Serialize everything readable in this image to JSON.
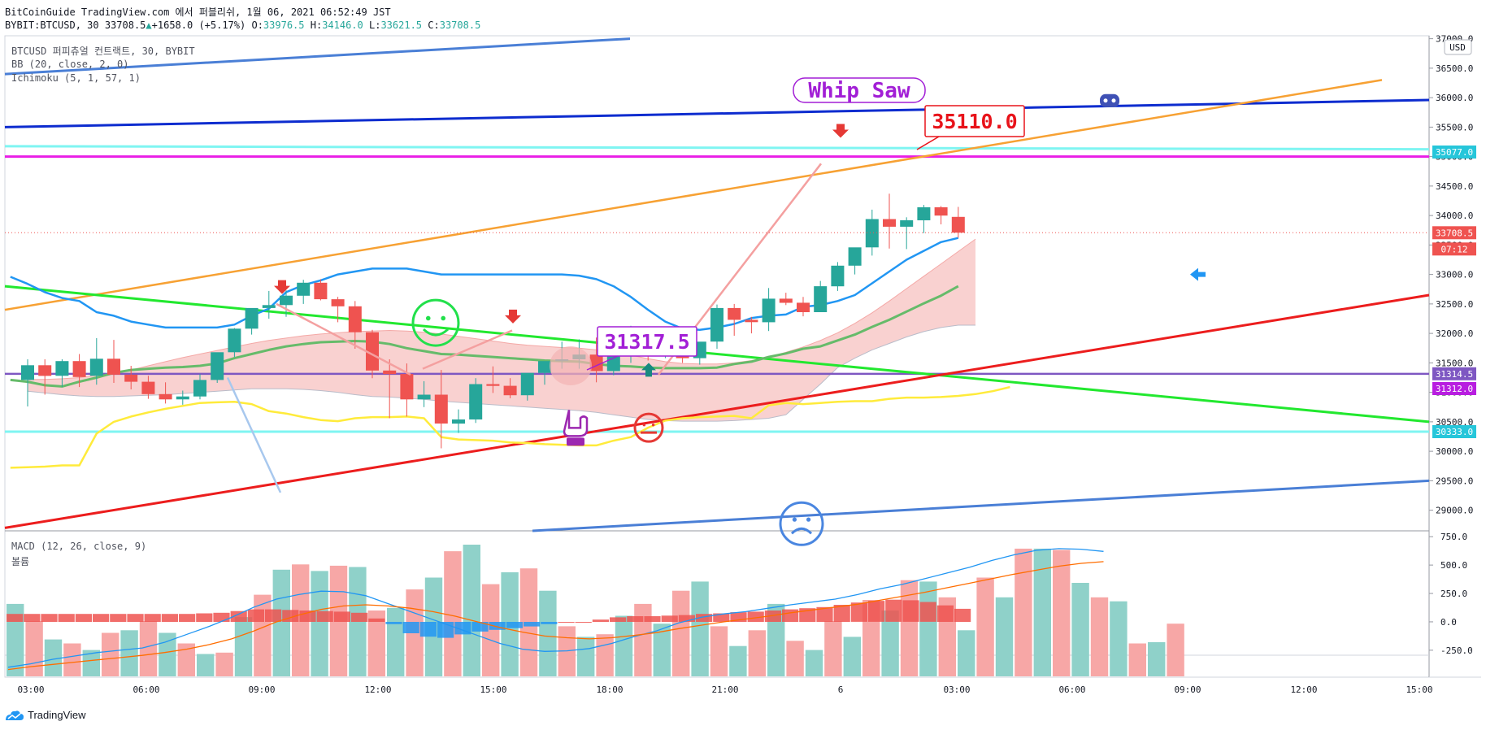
{
  "header": {
    "publisher": "BitCoinGuide TradingView.com 에서 퍼블리쉬, 1월 06, 2021 06:52:49 JST",
    "symbol": "BYBIT:BTCUSD, 30",
    "last": "33708.5",
    "change": "+1658.0 (+5.17%)",
    "o_label": "O:",
    "o": "33976.5",
    "h_label": "H:",
    "h": "34146.0",
    "l_label": "L:",
    "l": "33621.5",
    "c_label": "C:",
    "c": "33708.5"
  },
  "legend": {
    "line1": "BTCUSD 퍼피츄얼 컨트랙트, 30, BYBIT",
    "line2": "BB (20, close, 2, 0)",
    "line3": "Ichimoku (5, 1, 57, 1)",
    "macd": "MACD (12, 26, close, 9)",
    "volume": "볼륨"
  },
  "footer": {
    "brand": "TradingView"
  },
  "colors": {
    "up": "#26a69a",
    "down": "#ef5350",
    "bb": "#2196f3",
    "ichimoku_base": "#66bb6a",
    "ichimoku_lag": "#ffeb3b",
    "cloud": "#f8c9c8",
    "magenta": "#e91ee6",
    "cyan": "#7ff5f2",
    "purple": "#7e57c2",
    "navy": "#0d2ccf",
    "orange": "#f7a133",
    "green_line": "#22e82f",
    "red_line": "#ec1d1d",
    "steel_blue": "#4a7fd6"
  },
  "chart_data": {
    "type": "candlestick",
    "price_axis": {
      "range": [
        28650,
        37050
      ],
      "ticks": [
        "37000.0",
        "36500.0",
        "36000.0",
        "35500.0",
        "35000.0",
        "34500.0",
        "34000.0",
        "33500.0",
        "33000.0",
        "32500.0",
        "32000.0",
        "31500.0",
        "31000.0",
        "30500.0",
        "30000.0",
        "29500.0",
        "29000.0"
      ],
      "unit_label": "USD",
      "price_tags": [
        {
          "value": "35077.0",
          "color": "#26c6da"
        },
        {
          "value": "33708.5",
          "color": "#ef5350"
        },
        {
          "value": "07:12",
          "color": "#ef5350"
        },
        {
          "value": "31314.5",
          "color": "#7e57c2"
        },
        {
          "value": "31312.0",
          "color": "#b81ee0"
        },
        {
          "value": "30333.0",
          "color": "#26c6da"
        }
      ]
    },
    "time_axis": {
      "ticks": [
        "03:00",
        "06:00",
        "09:00",
        "12:00",
        "15:00",
        "18:00",
        "21:00",
        "6",
        "03:00",
        "06:00",
        "09:00",
        "12:00",
        "15:00"
      ]
    },
    "candles": [
      [
        31210,
        31560,
        31460,
        30760
      ],
      [
        31460,
        31560,
        31280,
        30960
      ],
      [
        31280,
        31560,
        31530,
        31090
      ],
      [
        31530,
        31650,
        31260,
        31090
      ],
      [
        31280,
        31920,
        31570,
        31130
      ],
      [
        31570,
        31890,
        31300,
        31160
      ],
      [
        31300,
        31450,
        31180,
        31050
      ],
      [
        31180,
        31280,
        30970,
        30890
      ],
      [
        30970,
        31170,
        30880,
        30810
      ],
      [
        30880,
        31030,
        30930,
        30790
      ],
      [
        30930,
        31310,
        31210,
        30880
      ],
      [
        31210,
        31610,
        31680,
        31160
      ],
      [
        31680,
        32090,
        32080,
        31600
      ],
      [
        32080,
        32380,
        32430,
        31980
      ],
      [
        32430,
        32720,
        32480,
        32250
      ],
      [
        32480,
        32730,
        32640,
        32280
      ],
      [
        32640,
        32910,
        32860,
        32500
      ],
      [
        32860,
        32920,
        32580,
        32560
      ],
      [
        32580,
        32620,
        32460,
        32190
      ],
      [
        32460,
        32550,
        32020,
        31740
      ],
      [
        32020,
        32060,
        31370,
        31240
      ],
      [
        31370,
        31560,
        31310,
        30560
      ],
      [
        31310,
        31490,
        30880,
        30590
      ],
      [
        30880,
        31190,
        30960,
        30750
      ],
      [
        30960,
        31380,
        30470,
        30050
      ],
      [
        30470,
        30710,
        30540,
        30310
      ],
      [
        30540,
        31240,
        31140,
        30480
      ],
      [
        31140,
        31440,
        31110,
        30990
      ],
      [
        31110,
        31240,
        30950,
        30900
      ],
      [
        30950,
        31270,
        31330,
        30860
      ],
      [
        31330,
        31410,
        31530,
        31130
      ],
      [
        31530,
        31860,
        31560,
        31400
      ],
      [
        31560,
        31900,
        31640,
        31400
      ],
      [
        31640,
        31930,
        31360,
        31170
      ],
      [
        31360,
        31600,
        31810,
        31290
      ],
      [
        31810,
        32130,
        31840,
        31500
      ],
      [
        31840,
        32040,
        31640,
        31540
      ],
      [
        31640,
        31960,
        31860,
        31580
      ],
      [
        31860,
        31900,
        31580,
        31500
      ],
      [
        31580,
        31710,
        31860,
        31470
      ],
      [
        31860,
        32490,
        32430,
        31740
      ],
      [
        32430,
        32500,
        32230,
        31960
      ],
      [
        32230,
        32280,
        32190,
        32000
      ],
      [
        32190,
        32770,
        32590,
        32040
      ],
      [
        32590,
        32690,
        32520,
        32480
      ],
      [
        32520,
        32620,
        32360,
        32290
      ],
      [
        32360,
        32890,
        32800,
        32360
      ],
      [
        32800,
        33210,
        33150,
        32720
      ],
      [
        33150,
        33450,
        33460,
        33000
      ],
      [
        33460,
        34100,
        33940,
        33320
      ],
      [
        33940,
        34370,
        33810,
        33440
      ],
      [
        33810,
        33970,
        33920,
        33430
      ],
      [
        33920,
        34180,
        34140,
        33700
      ],
      [
        34140,
        34160,
        34000,
        33850
      ],
      [
        33977,
        34146,
        33709,
        33622
      ]
    ],
    "bb_basis": [
      32960,
      32840,
      32700,
      32600,
      32550,
      32360,
      32300,
      32200,
      32150,
      32100,
      32100,
      32100,
      32100,
      32150,
      32300,
      32420,
      32700,
      32820,
      32900,
      33000,
      33050,
      33100,
      33100,
      33100,
      33050,
      33000,
      33000,
      33000,
      33000,
      33000,
      33000,
      33000,
      33000,
      32980,
      32920,
      32800,
      32620,
      32400,
      32200,
      32080,
      32060,
      32100,
      32160,
      32260,
      32300,
      32320,
      32450,
      32480,
      32550,
      32650,
      32850,
      33050,
      33250,
      33400,
      33550,
      33620
    ],
    "ichimoku_base": [
      31210,
      31180,
      31120,
      31100,
      31180,
      31250,
      31330,
      31380,
      31400,
      31420,
      31430,
      31450,
      31490,
      31580,
      31650,
      31720,
      31780,
      31820,
      31850,
      31860,
      31870,
      31860,
      31820,
      31750,
      31700,
      31650,
      31640,
      31620,
      31600,
      31580,
      31560,
      31540,
      31530,
      31520,
      31480,
      31450,
      31440,
      31420,
      31410,
      31410,
      31410,
      31420,
      31480,
      31520,
      31600,
      31660,
      31740,
      31780,
      31880,
      31980,
      32110,
      32230,
      32370,
      32510,
      32640,
      32800
    ],
    "ichimoku_lag": [
      29720,
      29730,
      29740,
      29760,
      29760,
      30300,
      30500,
      30590,
      30660,
      30720,
      30770,
      30820,
      30830,
      30840,
      30800,
      30680,
      30640,
      30580,
      30530,
      30510,
      30560,
      30580,
      30580,
      30590,
      30560,
      30240,
      30200,
      30190,
      30180,
      30150,
      30140,
      30120,
      30110,
      30100,
      30100,
      30180,
      30240,
      30400,
      30520,
      30560,
      30580,
      30590,
      30600,
      30560,
      30780,
      30820,
      30800,
      30820,
      30840,
      30850,
      30850,
      30890,
      30910,
      30910,
      30920,
      30940,
      30970,
      31020,
      31090
    ],
    "cloud_top": [
      31220,
      31220,
      31230,
      31250,
      31290,
      31330,
      31380,
      31450,
      31520,
      31590,
      31650,
      31710,
      31770,
      31830,
      31880,
      31920,
      31960,
      31990,
      32010,
      32030,
      32040,
      32050,
      32040,
      32020,
      31990,
      31950,
      31910,
      31870,
      31830,
      31800,
      31780,
      31760,
      31750,
      31720,
      31680,
      31630,
      31570,
      31520,
      31490,
      31480,
      31480,
      31500,
      31540,
      31600,
      31680,
      31770,
      31880,
      32010,
      32170,
      32350,
      32550,
      32760,
      32970,
      33180,
      33390,
      33600
    ],
    "cloud_bottom": [
      31020,
      30990,
      30960,
      30940,
      30930,
      30930,
      30940,
      30950,
      30960,
      30980,
      31000,
      31020,
      31040,
      31060,
      31060,
      31060,
      31050,
      31030,
      31000,
      30960,
      30930,
      30920,
      30900,
      30880,
      30850,
      30830,
      30810,
      30790,
      30770,
      30750,
      30730,
      30710,
      30690,
      30660,
      30620,
      30580,
      30540,
      30520,
      30510,
      30510,
      30510,
      30520,
      30540,
      30560,
      30620,
      30880,
      31140,
      31420,
      31580,
      31720,
      31830,
      31940,
      32030,
      32100,
      32140,
      32140
    ],
    "annotations": [
      {
        "text": "Whip Saw",
        "color": "#a21fd6"
      },
      {
        "text": "35110.0",
        "color": "#e8131a"
      },
      {
        "text": "31317.5",
        "color": "#a21fd6"
      }
    ],
    "macd_axis": {
      "range": [
        -480,
        780
      ],
      "ticks": [
        "750.0",
        "500.0",
        "250.0",
        "0.0",
        "-250.0"
      ]
    },
    "macd_hist": [
      70,
      70,
      70,
      70,
      70,
      70,
      70,
      70,
      70,
      70,
      70,
      75,
      80,
      95,
      110,
      110,
      105,
      100,
      95,
      90,
      80,
      30,
      -20,
      -100,
      -130,
      -140,
      -110,
      -85,
      -70,
      -55,
      -40,
      -20,
      0,
      0,
      20,
      40,
      50,
      50,
      55,
      60,
      70,
      75,
      85,
      90,
      100,
      110,
      120,
      130,
      150,
      170,
      185,
      195,
      190,
      175,
      145,
      115
    ],
    "macd_line": [
      -400,
      -370,
      -330,
      -300,
      -270,
      -250,
      -230,
      -180,
      -110,
      -40,
      40,
      130,
      200,
      240,
      270,
      265,
      230,
      160,
      90,
      20,
      -50,
      -120,
      -190,
      -240,
      -260,
      -255,
      -235,
      -190,
      -130,
      -80,
      -10,
      40,
      70,
      90,
      120,
      150,
      175,
      200,
      240,
      290,
      330,
      380,
      430,
      480,
      540,
      590,
      630,
      645,
      640,
      620
    ],
    "macd_signal": [
      -420,
      -395,
      -375,
      -355,
      -335,
      -315,
      -295,
      -270,
      -240,
      -200,
      -150,
      -80,
      0,
      60,
      110,
      140,
      150,
      140,
      120,
      90,
      50,
      0,
      -50,
      -90,
      -125,
      -140,
      -150,
      -140,
      -120,
      -95,
      -60,
      -30,
      0,
      25,
      50,
      80,
      105,
      130,
      155,
      190,
      225,
      260,
      300,
      340,
      380,
      420,
      455,
      490,
      515,
      530
    ],
    "volume": [
      [
        1,
        0.55
      ],
      [
        0,
        0.42
      ],
      [
        1,
        0.28
      ],
      [
        0,
        0.25
      ],
      [
        1,
        0.2
      ],
      [
        0,
        0.33
      ],
      [
        1,
        0.35
      ],
      [
        0,
        0.42
      ],
      [
        1,
        0.33
      ],
      [
        0,
        0.25
      ],
      [
        1,
        0.17
      ],
      [
        0,
        0.18
      ],
      [
        1,
        0.45
      ],
      [
        0,
        0.62
      ],
      [
        1,
        0.81
      ],
      [
        0,
        0.85
      ],
      [
        1,
        0.8
      ],
      [
        0,
        0.84
      ],
      [
        1,
        0.83
      ],
      [
        0,
        0.5
      ],
      [
        1,
        0.52
      ],
      [
        0,
        0.66
      ],
      [
        1,
        0.75
      ],
      [
        0,
        0.95
      ],
      [
        1,
        1.0
      ],
      [
        0,
        0.7
      ],
      [
        1,
        0.79
      ],
      [
        0,
        0.82
      ],
      [
        1,
        0.65
      ],
      [
        0,
        0.38
      ],
      [
        1,
        0.3
      ],
      [
        0,
        0.32
      ],
      [
        1,
        0.46
      ],
      [
        0,
        0.55
      ],
      [
        1,
        0.4
      ],
      [
        0,
        0.65
      ],
      [
        1,
        0.72
      ],
      [
        0,
        0.38
      ],
      [
        1,
        0.23
      ],
      [
        0,
        0.35
      ],
      [
        1,
        0.55
      ],
      [
        0,
        0.27
      ],
      [
        1,
        0.2
      ],
      [
        0,
        0.42
      ],
      [
        1,
        0.3
      ],
      [
        0,
        0.58
      ],
      [
        1,
        0.5
      ],
      [
        0,
        0.73
      ],
      [
        1,
        0.72
      ],
      [
        0,
        0.6
      ],
      [
        1,
        0.35
      ],
      [
        0,
        0.75
      ],
      [
        1,
        0.6
      ],
      [
        0,
        0.97
      ],
      [
        1,
        0.97
      ],
      [
        0,
        0.96
      ],
      [
        1,
        0.71
      ],
      [
        0,
        0.6
      ],
      [
        1,
        0.57
      ],
      [
        0,
        0.25
      ],
      [
        1,
        0.26
      ],
      [
        0,
        0.4
      ]
    ]
  }
}
